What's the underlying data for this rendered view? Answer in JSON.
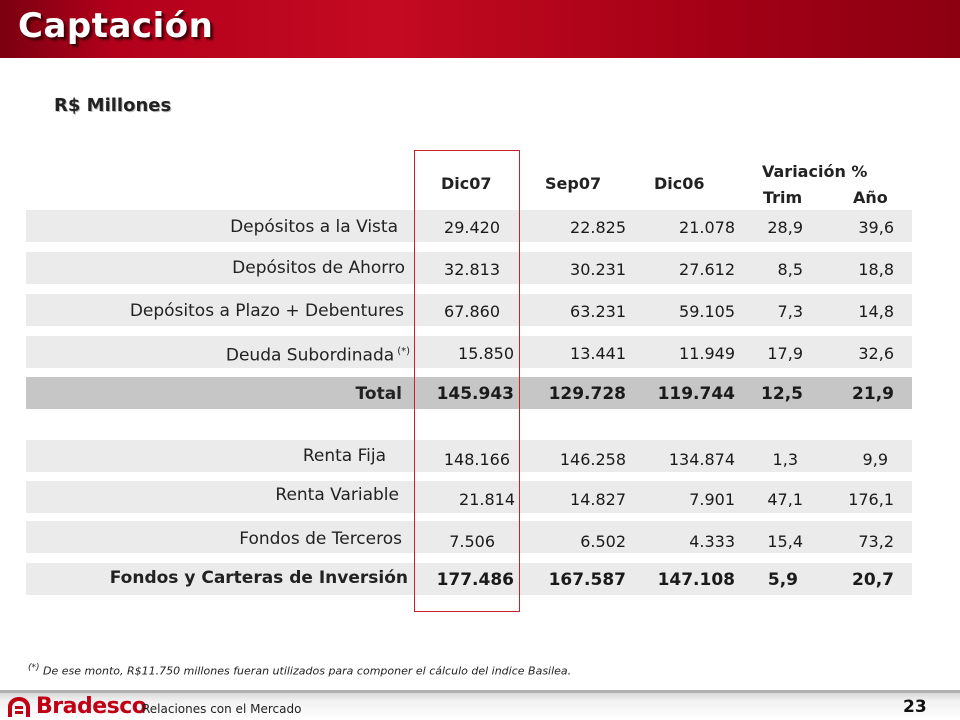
{
  "title": "Captación",
  "subtitle": "R$ Millones",
  "columns": {
    "dic07": "Dic07",
    "sep07": "Sep07",
    "dic06": "Dic06",
    "variacion": "Variación %",
    "trim": "Trim",
    "ano": "Año"
  },
  "rows": [
    {
      "label": "Depósitos a la Vista",
      "dic07": "29.420",
      "sep07": "22.825",
      "dic06": "21.078",
      "trim": "28,9",
      "ano": "39,6"
    },
    {
      "label": "Depósitos de Ahorro",
      "dic07": "32.813",
      "sep07": "30.231",
      "dic06": "27.612",
      "trim": "8,5",
      "ano": "18,8"
    },
    {
      "label": "Depósitos a Plazo + Debentures",
      "dic07": "67.860",
      "sep07": "63.231",
      "dic06": "59.105",
      "trim": "7,3",
      "ano": "14,8"
    },
    {
      "label": "Deuda Subordinada",
      "note": "(*)",
      "dic07": "15.850",
      "sep07": "13.441",
      "dic06": "11.949",
      "trim": "17,9",
      "ano": "32,6"
    },
    {
      "label": "Total",
      "dic07": "145.943",
      "sep07": "129.728",
      "dic06": "119.744",
      "trim": "12,5",
      "ano": "21,9"
    },
    {
      "label": "Renta Fija",
      "dic07": "148.166",
      "sep07": "146.258",
      "dic06": "134.874",
      "trim": "1,3",
      "ano": "9,9"
    },
    {
      "label": "Renta Variable",
      "dic07": "21.814",
      "sep07": "14.827",
      "dic06": "7.901",
      "trim": "47,1",
      "ano": "176,1"
    },
    {
      "label": "Fondos de Terceros",
      "dic07": "7.506",
      "sep07": "6.502",
      "dic06": "4.333",
      "trim": "15,4",
      "ano": "73,2"
    },
    {
      "label": "Fondos y Carteras de Inversión",
      "dic07": "177.486",
      "sep07": "167.587",
      "dic06": "147.108",
      "trim": "5,9",
      "ano": "20,7"
    }
  ],
  "footnote": {
    "mark": "(*)",
    "text": "De ese monto, R$11.750  millones fueran utilizados para componer el cálculo del indice Basilea."
  },
  "footer": {
    "brand": "Bradesco",
    "label": "Relaciones  con el Mercado",
    "page": "23"
  },
  "colors": {
    "header_red": "#b3001b",
    "highlight_border": "#cc1f2a",
    "band_light": "#ebebeb",
    "band_total": "#c6c6c6"
  }
}
